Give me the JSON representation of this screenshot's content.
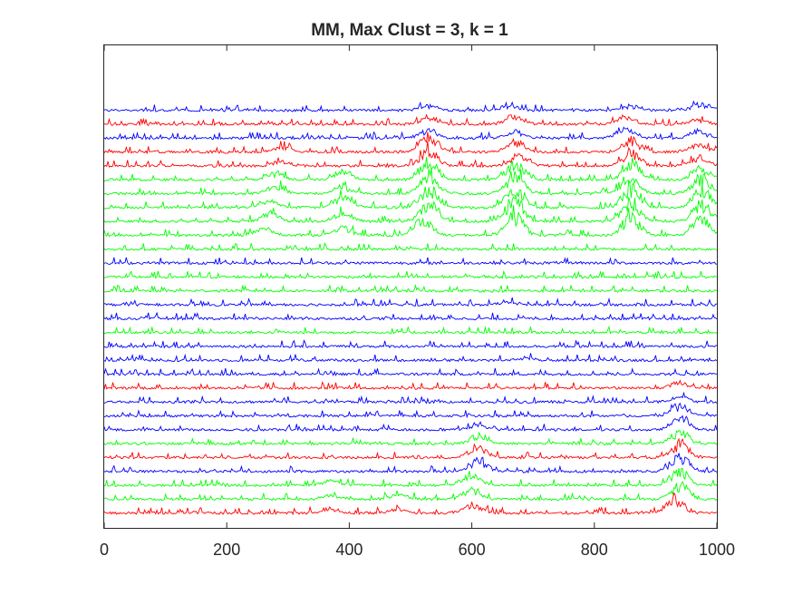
{
  "chart_data": {
    "type": "line",
    "title": "MM, Max Clust = 3, k = 1",
    "xlabel": "",
    "ylabel": "",
    "xlim": [
      0,
      1000
    ],
    "x_ticks": [
      0,
      200,
      400,
      600,
      800,
      1000
    ],
    "x_tick_labels": [
      "0",
      "200",
      "400",
      "600",
      "800",
      "1000"
    ],
    "y_ticks": [],
    "grid": false,
    "legend": "none",
    "description_of_traces": "30 stacked noisy spectra (top to bottom), each colored by cluster assignment",
    "cluster_colors": {
      "red": "#ff0000",
      "green": "#00ff00",
      "blue": "#0000ff"
    },
    "traces": [
      {
        "color": "blue",
        "peaks": [
          [
            530,
            0.5
          ],
          [
            660,
            0.6
          ],
          [
            860,
            0.5
          ],
          [
            975,
            0.7
          ]
        ]
      },
      {
        "color": "red",
        "peaks": [
          [
            530,
            0.8
          ],
          [
            670,
            1.0
          ],
          [
            850,
            0.8
          ],
          [
            970,
            0.5
          ]
        ]
      },
      {
        "color": "blue",
        "peaks": [
          [
            530,
            1.0
          ],
          [
            670,
            0.8
          ],
          [
            850,
            1.0
          ],
          [
            970,
            0.8
          ]
        ]
      },
      {
        "color": "red",
        "peaks": [
          [
            290,
            0.6
          ],
          [
            530,
            1.8
          ],
          [
            670,
            1.2
          ],
          [
            860,
            1.4
          ],
          [
            970,
            0.9
          ]
        ]
      },
      {
        "color": "red",
        "peaks": [
          [
            290,
            0.5
          ],
          [
            530,
            1.8
          ],
          [
            680,
            1.2
          ],
          [
            860,
            1.5
          ],
          [
            970,
            1.0
          ]
        ]
      },
      {
        "color": "green",
        "peaks": [
          [
            280,
            0.8
          ],
          [
            390,
            1.0
          ],
          [
            530,
            2.0
          ],
          [
            670,
            2.0
          ],
          [
            860,
            2.0
          ],
          [
            975,
            1.5
          ]
        ]
      },
      {
        "color": "green",
        "peaks": [
          [
            280,
            0.8
          ],
          [
            390,
            0.8
          ],
          [
            530,
            2.2
          ],
          [
            670,
            2.2
          ],
          [
            860,
            2.2
          ],
          [
            975,
            1.8
          ]
        ]
      },
      {
        "color": "green",
        "peaks": [
          [
            270,
            1.0
          ],
          [
            390,
            1.2
          ],
          [
            530,
            2.2
          ],
          [
            670,
            2.4
          ],
          [
            860,
            2.4
          ],
          [
            975,
            2.0
          ]
        ]
      },
      {
        "color": "green",
        "peaks": [
          [
            270,
            1.0
          ],
          [
            390,
            1.0
          ],
          [
            530,
            2.2
          ],
          [
            670,
            2.6
          ],
          [
            860,
            2.4
          ],
          [
            975,
            2.2
          ]
        ]
      },
      {
        "color": "green",
        "peaks": [
          [
            260,
            0.8
          ],
          [
            390,
            0.9
          ],
          [
            520,
            2.0
          ],
          [
            670,
            2.4
          ],
          [
            860,
            2.2
          ],
          [
            975,
            2.0
          ]
        ]
      },
      {
        "color": "green",
        "peaks": []
      },
      {
        "color": "blue",
        "peaks": []
      },
      {
        "color": "green",
        "peaks": []
      },
      {
        "color": "green",
        "peaks": []
      },
      {
        "color": "blue",
        "peaks": [
          [
            660,
            0.3
          ]
        ]
      },
      {
        "color": "blue",
        "peaks": []
      },
      {
        "color": "green",
        "peaks": []
      },
      {
        "color": "blue",
        "peaks": []
      },
      {
        "color": "blue",
        "peaks": [
          [
            690,
            0.3
          ]
        ]
      },
      {
        "color": "blue",
        "peaks": []
      },
      {
        "color": "red",
        "peaks": [
          [
            940,
            0.6
          ]
        ]
      },
      {
        "color": "blue",
        "peaks": [
          [
            940,
            0.6
          ]
        ]
      },
      {
        "color": "blue",
        "peaks": [
          [
            940,
            1.2
          ]
        ]
      },
      {
        "color": "blue",
        "peaks": [
          [
            610,
            0.6
          ],
          [
            940,
            1.4
          ]
        ]
      },
      {
        "color": "green",
        "peaks": [
          [
            610,
            0.8
          ],
          [
            940,
            1.4
          ]
        ]
      },
      {
        "color": "red",
        "peaks": [
          [
            610,
            1.2
          ],
          [
            940,
            1.6
          ]
        ]
      },
      {
        "color": "blue",
        "peaks": [
          [
            610,
            1.3
          ],
          [
            940,
            1.8
          ]
        ]
      },
      {
        "color": "green",
        "peaks": [
          [
            370,
            0.6
          ],
          [
            600,
            1.4
          ],
          [
            940,
            1.6
          ]
        ]
      },
      {
        "color": "green",
        "peaks": [
          [
            370,
            0.5
          ],
          [
            480,
            0.5
          ],
          [
            600,
            1.2
          ],
          [
            940,
            1.8
          ]
        ]
      },
      {
        "color": "red",
        "peaks": [
          [
            370,
            0.5
          ],
          [
            480,
            0.5
          ],
          [
            600,
            1.0
          ],
          [
            930,
            1.6
          ]
        ]
      }
    ]
  }
}
